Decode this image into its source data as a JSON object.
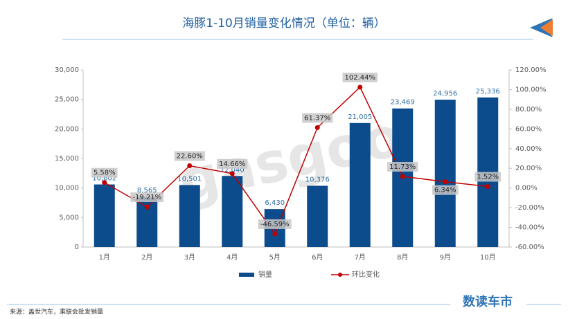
{
  "chart_data": {
    "type": "bar-line",
    "title": "海豚1-10月销量变化情况（单位：辆）",
    "watermark": "gasgoo",
    "categories": [
      "1月",
      "2月",
      "3月",
      "4月",
      "5月",
      "6月",
      "7月",
      "8月",
      "9月",
      "10月"
    ],
    "series": [
      {
        "name": "销量",
        "type": "bar",
        "color": "#0d4c8c",
        "values": [
          10602,
          8565,
          10501,
          12040,
          6430,
          10376,
          21005,
          23469,
          24956,
          25336
        ],
        "value_labels": [
          "10,602",
          "8,565",
          "10,501",
          "12,040",
          "6,430",
          "10,376",
          "21,005",
          "23,469",
          "24,956",
          "25,336"
        ]
      },
      {
        "name": "环比变化",
        "type": "line",
        "axis": "y2",
        "color": "#c00000",
        "values": [
          5.58,
          -19.21,
          22.6,
          14.66,
          -46.59,
          61.37,
          102.44,
          11.73,
          6.34,
          1.52
        ],
        "value_labels": [
          "5.58%",
          "-19.21%",
          "22.60%",
          "14.66%",
          "-46.59%",
          "61.37%",
          "102.44%",
          "11.73%",
          "6.34%",
          "1.52%"
        ]
      }
    ],
    "ylim": [
      0,
      30000
    ],
    "yticks": [
      0,
      {
        "value": 5000,
        "label": "5,000"
      },
      {
        "value": 10000,
        "label": "10,000"
      },
      {
        "value": 15000,
        "label": "15,000"
      },
      {
        "value": 20000,
        "label": "20,000"
      },
      {
        "value": 25000,
        "label": "25,000"
      },
      {
        "value": 30000,
        "label": "30,000"
      }
    ],
    "y2lim": [
      -60,
      120
    ],
    "y2ticks": [
      {
        "value": -60,
        "label": "-60.00%"
      },
      {
        "value": -40,
        "label": "-40.00%"
      },
      {
        "value": -20,
        "label": "-20.00%"
      },
      {
        "value": 0,
        "label": "0.00%"
      },
      {
        "value": 20,
        "label": "20.00%"
      },
      {
        "value": 40,
        "label": "40.00%"
      },
      {
        "value": 60,
        "label": "60.00%"
      },
      {
        "value": 80,
        "label": "80.00%"
      },
      {
        "value": 100,
        "label": "100.00%"
      },
      {
        "value": 120,
        "label": "120.00%"
      }
    ],
    "source": "来源：盖世汽车，乘联会批发销量",
    "brand": "数读车市"
  }
}
